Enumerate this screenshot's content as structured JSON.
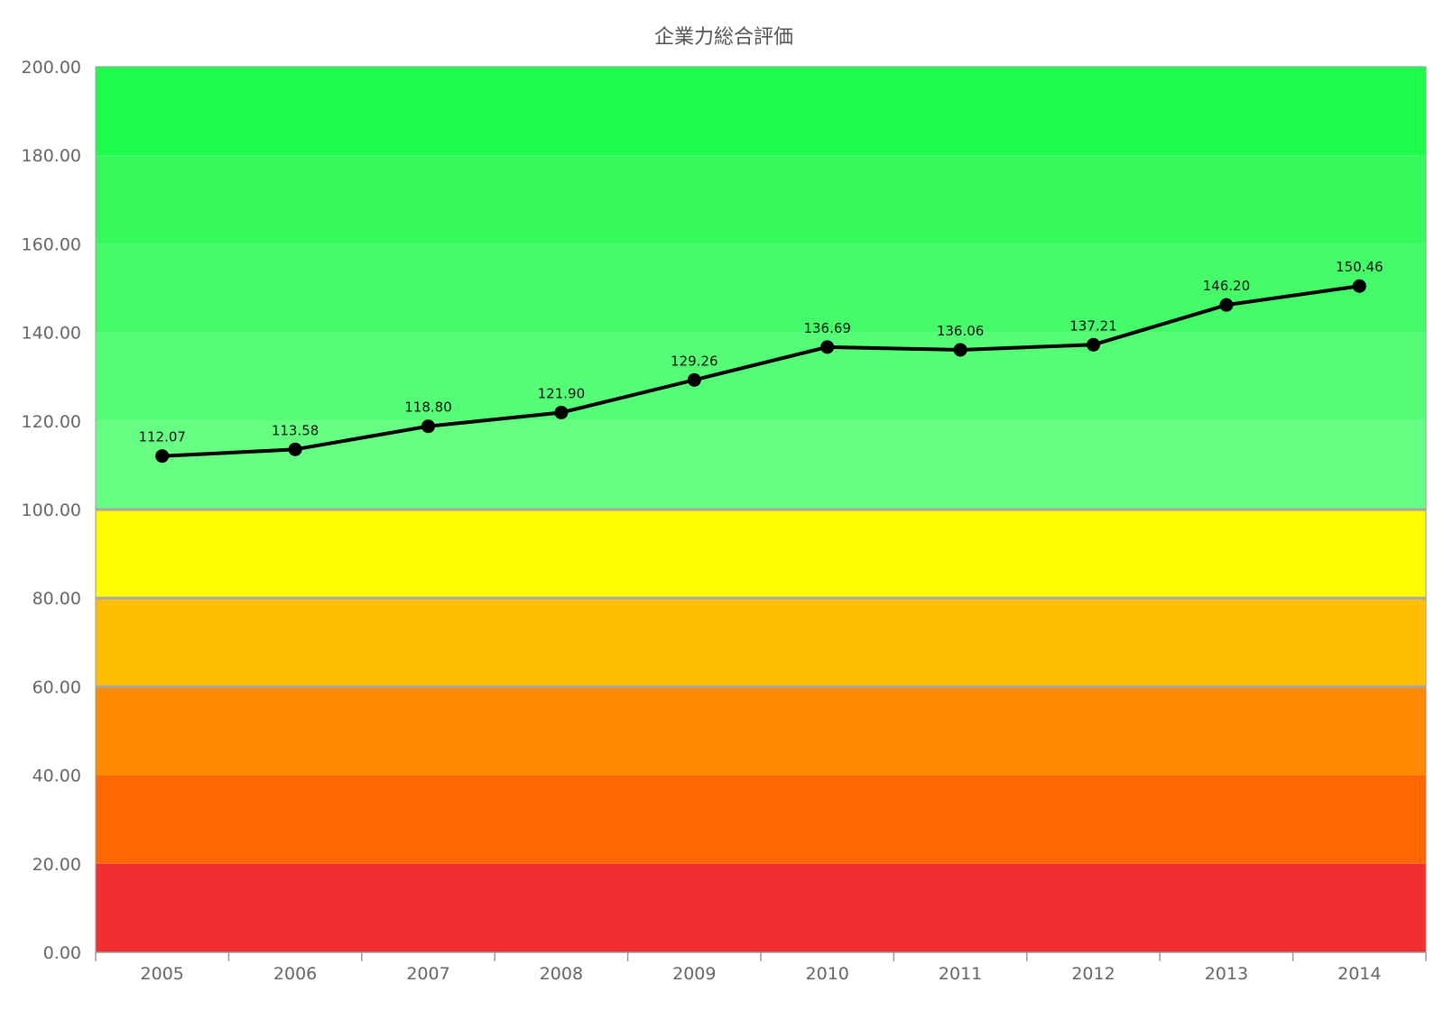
{
  "chart_data": {
    "type": "line",
    "title": "企業力総合評価",
    "xlabel": "",
    "ylabel": "",
    "ylim": [
      0,
      200
    ],
    "y_ticks": [
      "0.00",
      "20.00",
      "40.00",
      "60.00",
      "80.00",
      "100.00",
      "120.00",
      "140.00",
      "160.00",
      "180.00",
      "200.00"
    ],
    "categories": [
      "2005",
      "2006",
      "2007",
      "2008",
      "2009",
      "2010",
      "2011",
      "2012",
      "2013",
      "2014"
    ],
    "series": [
      {
        "values": [
          112.07,
          113.58,
          118.8,
          121.9,
          129.26,
          136.69,
          136.06,
          137.21,
          146.2,
          150.46
        ],
        "labels": [
          "112.07",
          "113.58",
          "118.80",
          "121.90",
          "129.26",
          "136.69",
          "136.06",
          "137.21",
          "146.20",
          "150.46"
        ],
        "color": "#000000"
      }
    ],
    "bands": [
      {
        "from": 0,
        "to": 20,
        "color": "#F22E30"
      },
      {
        "from": 20,
        "to": 40,
        "color": "#FF6703"
      },
      {
        "from": 40,
        "to": 60,
        "color": "#FF8A00"
      },
      {
        "from": 60,
        "to": 80,
        "color": "#FFBE00"
      },
      {
        "from": 80,
        "to": 100,
        "color": "#FFFB00"
      },
      {
        "from": 100,
        "to": 120,
        "color": "#66FF84"
      },
      {
        "from": 120,
        "to": 140,
        "color": "#56FD77"
      },
      {
        "from": 140,
        "to": 160,
        "color": "#46FB6A"
      },
      {
        "from": 160,
        "to": 180,
        "color": "#36FA5C"
      },
      {
        "from": 180,
        "to": 200,
        "color": "#1EFC4C"
      }
    ],
    "threshold_lines": [
      100,
      80,
      60
    ],
    "grid": false,
    "legend": "none"
  }
}
